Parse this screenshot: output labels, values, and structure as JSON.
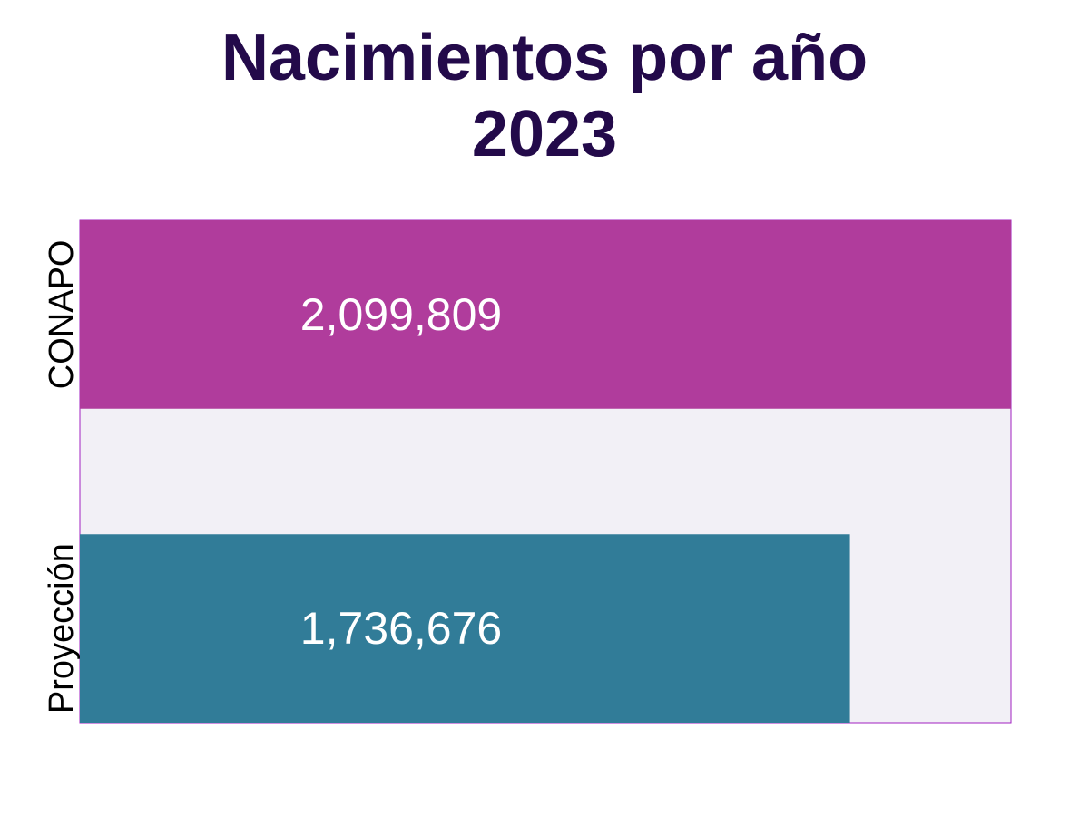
{
  "chart_data": {
    "type": "bar",
    "orientation": "horizontal",
    "title_line1": "Nacimientos por año",
    "title_line2": "2023",
    "categories": [
      "CONAPO",
      "Proyección"
    ],
    "values": [
      2099809,
      1736676
    ],
    "value_labels": [
      "2,099,809",
      "1,736,676"
    ],
    "colors": [
      "#b03c9c",
      "#317c98"
    ],
    "panel_background": "#f2f0f6",
    "panel_border": "#a020c0",
    "title_color": "#230a4a",
    "xlabel": "",
    "ylabel": "",
    "xlim": [
      0,
      2099809
    ],
    "grid": false,
    "legend": "none"
  }
}
